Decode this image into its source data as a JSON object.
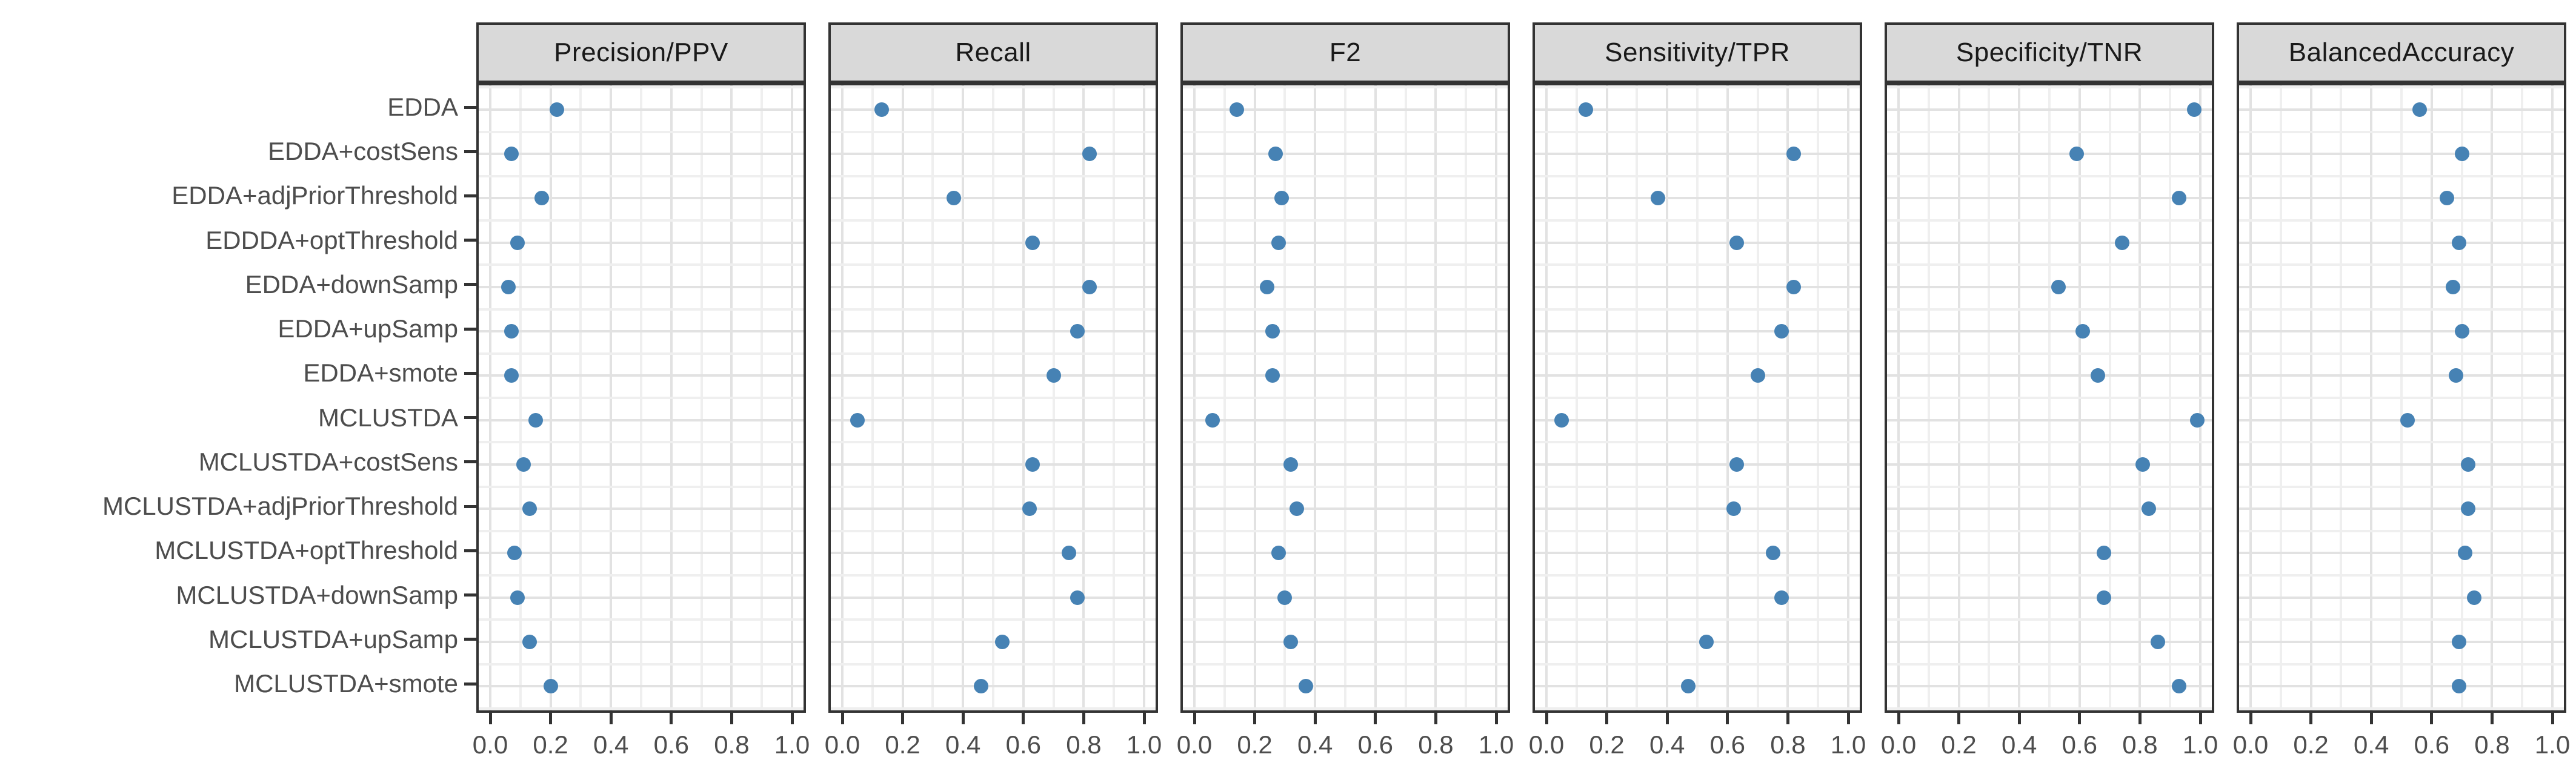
{
  "figure": {
    "description": "Faceted horizontal dot plot comparing classification performance metrics across model variants"
  },
  "colors": {
    "dot": "#4682b4",
    "panel_border": "#333333",
    "strip_fill": "#d9d9d9",
    "strip_text": "#1a1a1a",
    "grid_major": "#e2e2e2",
    "grid_minor": "#efefef",
    "axis_text": "#4d4d4d",
    "background": "#ffffff"
  },
  "chart_data": {
    "type": "scatter",
    "subtype": "faceted-dot-plot",
    "categories": [
      "EDDA",
      "EDDA+costSens",
      "EDDA+adjPriorThreshold",
      "EDDDA+optThreshold",
      "EDDA+downSamp",
      "EDDA+upSamp",
      "EDDA+smote",
      "MCLUSTDA",
      "MCLUSTDA+costSens",
      "MCLUSTDA+adjPriorThreshold",
      "MCLUSTDA+optThreshold",
      "MCLUSTDA+downSamp",
      "MCLUSTDA+upSamp",
      "MCLUSTDA+smote"
    ],
    "series": [
      {
        "name": "Precision/PPV",
        "values": [
          0.22,
          0.07,
          0.17,
          0.09,
          0.06,
          0.07,
          0.07,
          0.15,
          0.11,
          0.13,
          0.08,
          0.09,
          0.13,
          0.2
        ]
      },
      {
        "name": "Recall",
        "values": [
          0.13,
          0.82,
          0.37,
          0.63,
          0.82,
          0.78,
          0.7,
          0.05,
          0.63,
          0.62,
          0.75,
          0.78,
          0.53,
          0.46
        ]
      },
      {
        "name": "F2",
        "values": [
          0.14,
          0.27,
          0.29,
          0.28,
          0.24,
          0.26,
          0.26,
          0.06,
          0.32,
          0.34,
          0.28,
          0.3,
          0.32,
          0.37
        ]
      },
      {
        "name": "Sensitivity/TPR",
        "values": [
          0.13,
          0.82,
          0.37,
          0.63,
          0.82,
          0.78,
          0.7,
          0.05,
          0.63,
          0.62,
          0.75,
          0.78,
          0.53,
          0.47
        ]
      },
      {
        "name": "Specificity/TNR",
        "values": [
          0.98,
          0.59,
          0.93,
          0.74,
          0.53,
          0.61,
          0.66,
          0.99,
          0.81,
          0.83,
          0.68,
          0.68,
          0.86,
          0.93
        ]
      },
      {
        "name": "BalancedAccuracy",
        "values": [
          0.56,
          0.7,
          0.65,
          0.69,
          0.67,
          0.7,
          0.68,
          0.52,
          0.72,
          0.72,
          0.71,
          0.74,
          0.69,
          0.69
        ]
      }
    ],
    "x_tick_labels": [
      "0.0",
      "0.2",
      "0.4",
      "0.6",
      "0.8",
      "1.0"
    ],
    "xlim": [
      -0.046,
      1.046
    ],
    "grid": true,
    "legend_position": "none"
  }
}
